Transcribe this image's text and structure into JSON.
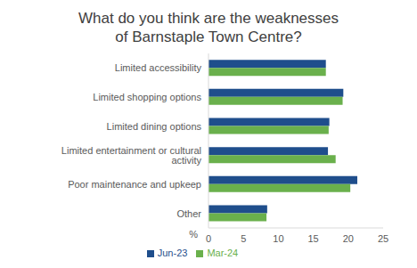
{
  "chart_data": {
    "type": "bar",
    "title": "What do you think are the weaknesses of Barnstaple Town Centre?",
    "orientation": "horizontal",
    "categories": [
      "Limited accessibility",
      "Limited shopping options",
      "Limited dining options",
      "Limited entertainment or cultural activity",
      "Poor maintenance and upkeep",
      "Other"
    ],
    "series": [
      {
        "name": "Jun-23",
        "color": "#1f4e8c",
        "values": [
          16.8,
          19.3,
          17.3,
          17.1,
          21.3,
          8.4
        ]
      },
      {
        "name": "Mar-24",
        "color": "#6ab04c",
        "values": [
          16.8,
          19.2,
          17.2,
          18.2,
          20.3,
          8.3
        ]
      }
    ],
    "x_label": "%",
    "xlim": [
      0,
      25
    ],
    "xticks": [
      0,
      5,
      10,
      15,
      20,
      25
    ],
    "grid": false,
    "legend": "bottom"
  }
}
